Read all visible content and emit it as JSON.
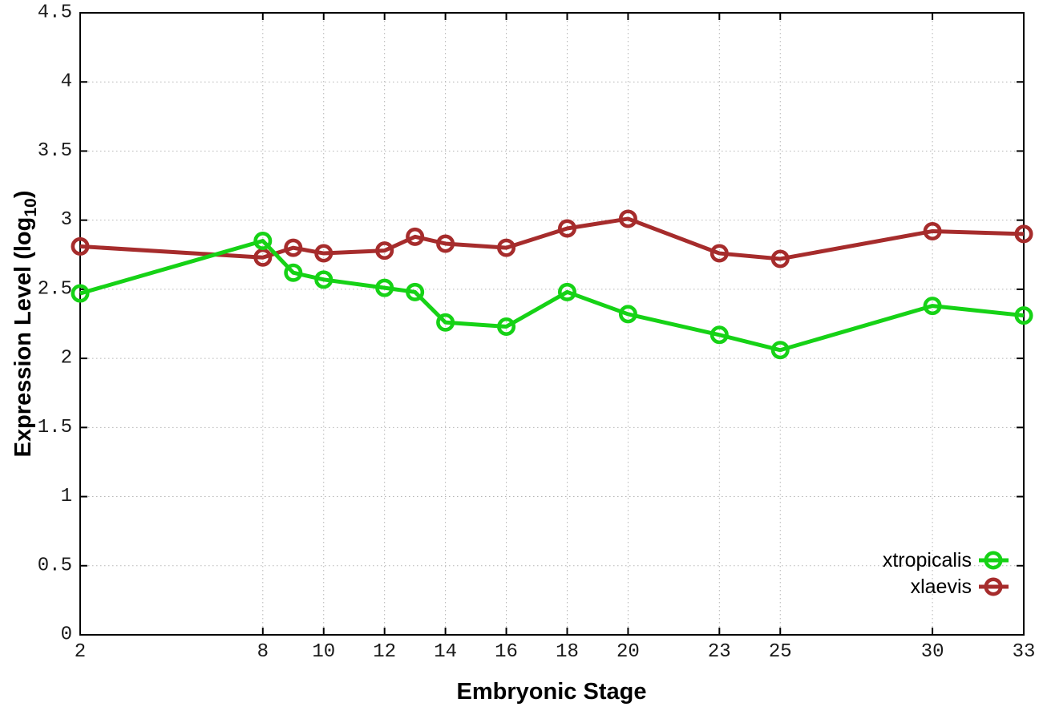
{
  "chart_data": {
    "type": "line",
    "title": "",
    "xlabel": "Embryonic Stage",
    "ylabel": "Expression Level (log10)",
    "ylabel_parts": {
      "prefix": "Expression Level (log",
      "sub": "10",
      "suffix": ")"
    },
    "xlim": [
      2,
      33
    ],
    "ylim": [
      0,
      4.5
    ],
    "grid": true,
    "legend_position": "bottom-right",
    "x_ticks": [
      {
        "v": 2,
        "label": "2"
      },
      {
        "v": 8,
        "label": "8"
      },
      {
        "v": 10,
        "label": "10"
      },
      {
        "v": 12,
        "label": "12"
      },
      {
        "v": 14,
        "label": "14"
      },
      {
        "v": 16,
        "label": "16"
      },
      {
        "v": 18,
        "label": "18"
      },
      {
        "v": 20,
        "label": "20"
      },
      {
        "v": 23,
        "label": "23"
      },
      {
        "v": 25,
        "label": "25"
      },
      {
        "v": 30,
        "label": "30"
      },
      {
        "v": 33,
        "label": "33"
      }
    ],
    "y_ticks": [
      {
        "v": 0,
        "label": "0"
      },
      {
        "v": 0.5,
        "label": "0.5"
      },
      {
        "v": 1,
        "label": "1"
      },
      {
        "v": 1.5,
        "label": "1.5"
      },
      {
        "v": 2,
        "label": "2"
      },
      {
        "v": 2.5,
        "label": "2.5"
      },
      {
        "v": 3,
        "label": "3"
      },
      {
        "v": 3.5,
        "label": "3.5"
      },
      {
        "v": 4,
        "label": "4"
      },
      {
        "v": 4.5,
        "label": "4.5"
      }
    ],
    "x": [
      2,
      8,
      9,
      10,
      12,
      13,
      14,
      16,
      18,
      20,
      23,
      25,
      30,
      33
    ],
    "series": [
      {
        "name": "xtropicalis",
        "color": "#16d216",
        "values": [
          2.47,
          2.85,
          2.62,
          2.57,
          2.51,
          2.48,
          2.26,
          2.23,
          2.48,
          2.32,
          2.17,
          2.06,
          2.38,
          2.31
        ]
      },
      {
        "name": "xlaevis",
        "color": "#a62c2c",
        "values": [
          2.81,
          2.73,
          2.8,
          2.76,
          2.78,
          2.88,
          2.83,
          2.8,
          2.94,
          3.01,
          2.76,
          2.72,
          2.92,
          2.9
        ]
      }
    ],
    "style": {
      "border_color": "#000000",
      "grid_color": "#b5b5b5",
      "tick_label_color": "#1a1a1a",
      "text_color": "#000000",
      "marker": "open-circle"
    }
  }
}
